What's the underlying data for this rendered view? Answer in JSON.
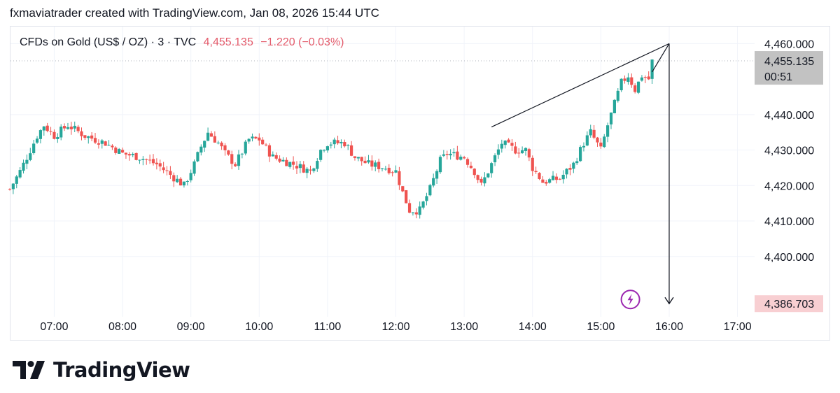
{
  "header": {
    "caption": "fxmaviatrader created with TradingView.com, Jan 08, 2026 15:44 UTC"
  },
  "legend": {
    "symbol": "CFDs on Gold (US$ / OZ) · 3 · TVC",
    "price": "4,455.135",
    "change": "−1.220 (−0.03%)"
  },
  "price_axis": {
    "last_price_label": "4,455.135",
    "countdown": "00:51",
    "target_label": "4,386.703"
  },
  "brand": {
    "name": "TradingView",
    "logo_icon": "tradingview-logo-icon"
  },
  "colors": {
    "up": "#26a69a",
    "down": "#ef5350",
    "text": "#131722",
    "grid": "#f0f3fa",
    "lightning": "#9c27b0"
  },
  "chart_data": {
    "type": "candlestick",
    "symbol": "TVC:GOLD",
    "interval": "3",
    "x": {
      "start": "06:21",
      "end": "17:15"
    },
    "time_ticks": [
      "07:00",
      "08:00",
      "09:00",
      "10:00",
      "11:00",
      "12:00",
      "13:00",
      "14:00",
      "15:00",
      "16:00",
      "17:00"
    ],
    "price_ticks": [
      "4,400.000",
      "4,410.000",
      "4,420.000",
      "4,430.000",
      "4,440.000",
      "4,460.000"
    ],
    "ylim": [
      4383,
      4465
    ],
    "last_price": 4455.135,
    "close_path": [
      [
        "06:21",
        4419
      ],
      [
        "06:30",
        4424
      ],
      [
        "06:45",
        4434
      ],
      [
        "06:51",
        4437
      ],
      [
        "07:00",
        4434
      ],
      [
        "07:12",
        4437
      ],
      [
        "07:27",
        4434
      ],
      [
        "07:45",
        4432
      ],
      [
        "08:00",
        4429
      ],
      [
        "08:15",
        4428
      ],
      [
        "08:30",
        4426
      ],
      [
        "08:42",
        4423
      ],
      [
        "08:54",
        4420
      ],
      [
        "09:03",
        4426
      ],
      [
        "09:09",
        4431
      ],
      [
        "09:15",
        4435
      ],
      [
        "09:24",
        4432
      ],
      [
        "09:30",
        4429
      ],
      [
        "09:39",
        4426
      ],
      [
        "09:51",
        4433
      ],
      [
        "10:00",
        4433
      ],
      [
        "10:12",
        4428
      ],
      [
        "10:30",
        4426
      ],
      [
        "10:45",
        4424
      ],
      [
        "10:54",
        4430
      ],
      [
        "11:00",
        4432
      ],
      [
        "11:15",
        4432
      ],
      [
        "11:24",
        4428
      ],
      [
        "11:36",
        4426
      ],
      [
        "11:51",
        4425
      ],
      [
        "12:00",
        4424
      ],
      [
        "12:06",
        4418
      ],
      [
        "12:12",
        4413
      ],
      [
        "12:21",
        4413
      ],
      [
        "12:30",
        4419
      ],
      [
        "12:39",
        4427
      ],
      [
        "12:45",
        4429
      ],
      [
        "13:00",
        4428
      ],
      [
        "13:09",
        4424
      ],
      [
        "13:15",
        4420
      ],
      [
        "13:24",
        4426
      ],
      [
        "13:33",
        4432
      ],
      [
        "13:45",
        4430
      ],
      [
        "13:54",
        4430
      ],
      [
        "14:00",
        4425
      ],
      [
        "14:09",
        4421
      ],
      [
        "14:24",
        4422
      ],
      [
        "14:36",
        4426
      ],
      [
        "14:45",
        4432
      ],
      [
        "14:51",
        4435
      ],
      [
        "15:00",
        4430
      ],
      [
        "15:06",
        4437
      ],
      [
        "15:12",
        4443
      ],
      [
        "15:18",
        4449
      ],
      [
        "15:24",
        4451
      ],
      [
        "15:30",
        4447
      ],
      [
        "15:36",
        4451
      ],
      [
        "15:42",
        4450
      ],
      [
        "15:45",
        4455
      ]
    ],
    "drawings": [
      {
        "type": "trendline",
        "from": [
          "13:24",
          4436.5
        ],
        "to": [
          "16:00",
          4460
        ]
      },
      {
        "type": "trendline",
        "from": [
          "15:45",
          4452
        ],
        "to": [
          "16:00",
          4460
        ]
      },
      {
        "type": "arrow",
        "from": [
          "16:00",
          4460
        ],
        "to": [
          "16:00",
          4386.7
        ]
      }
    ],
    "target_price": 4386.703
  }
}
